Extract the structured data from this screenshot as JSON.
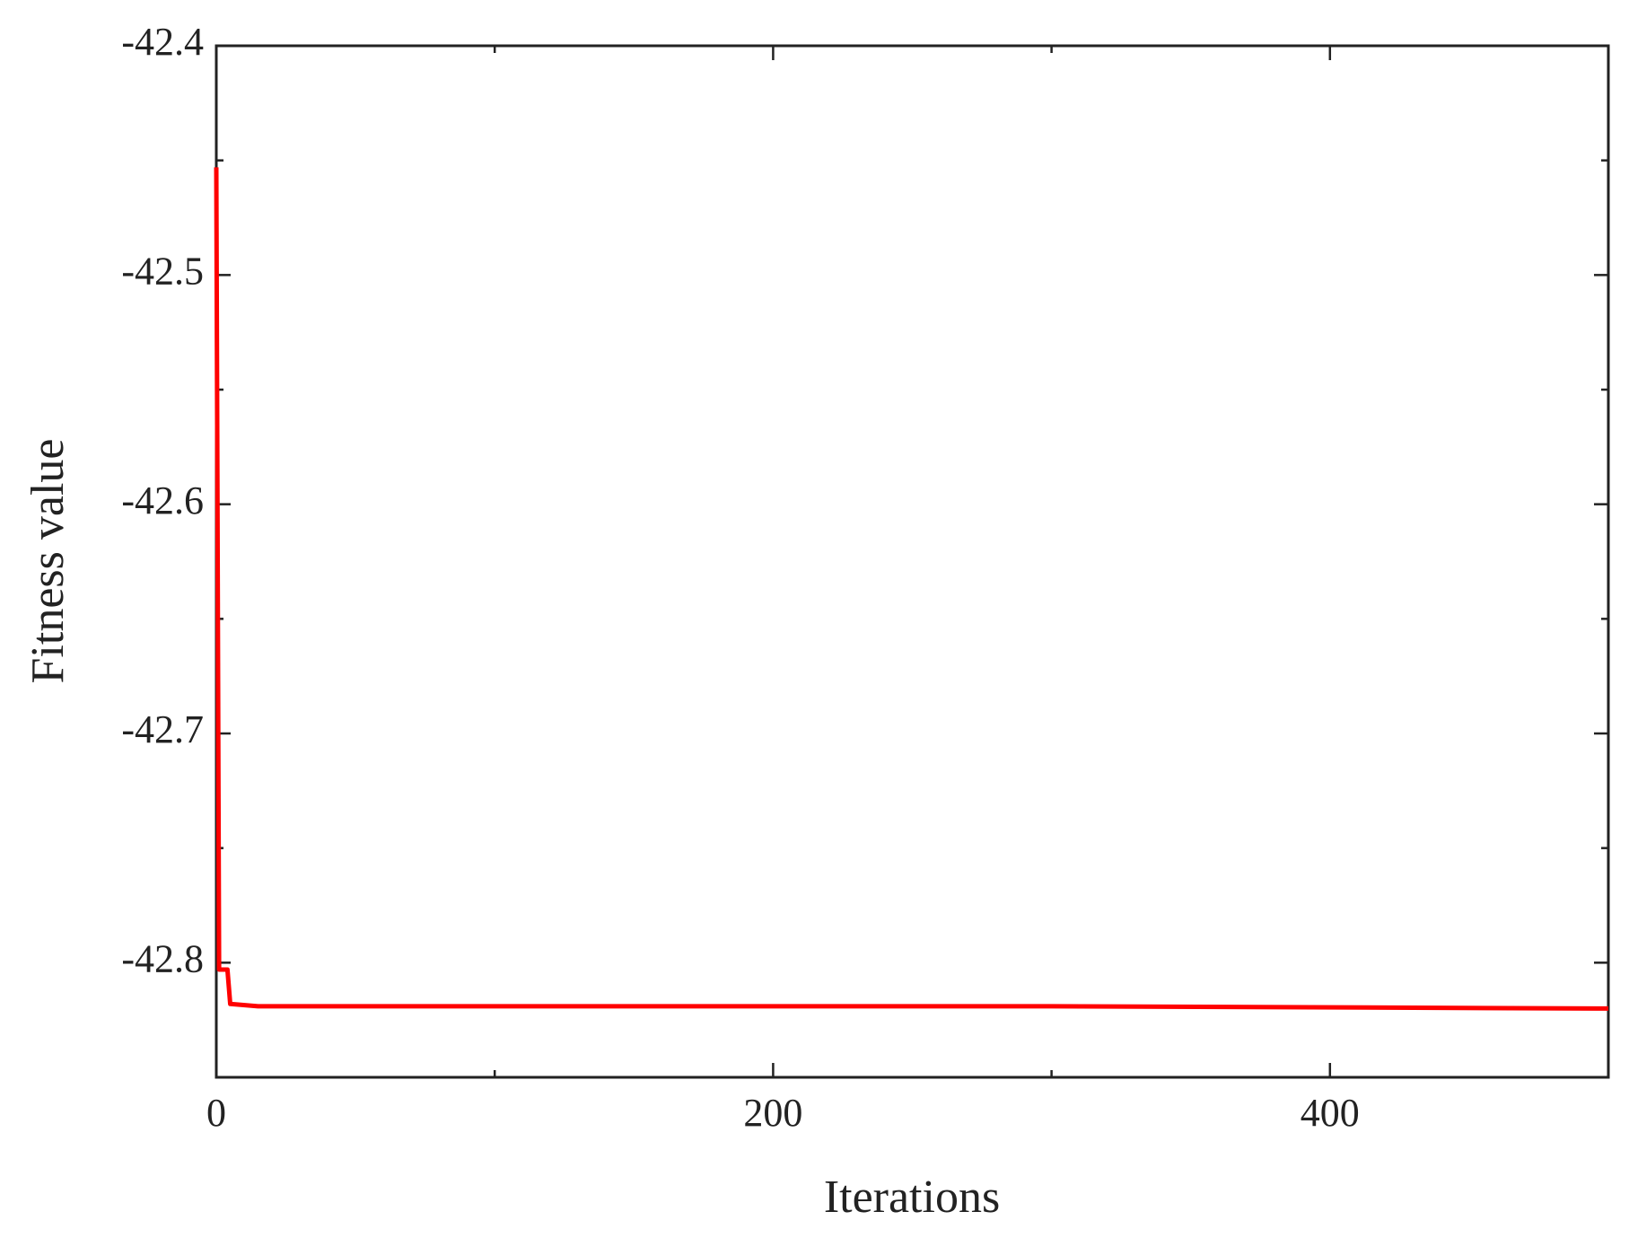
{
  "chart_data": {
    "type": "line",
    "xlabel": "Iterations",
    "ylabel": "Fitness value",
    "x": [
      0,
      1,
      2,
      4,
      5,
      15,
      100,
      300,
      500
    ],
    "series": [
      {
        "color": "#ff0000",
        "values": [
          -42.453,
          -42.803,
          -42.803,
          -42.803,
          -42.818,
          -42.819,
          -42.819,
          -42.819,
          -42.82
        ]
      }
    ],
    "xlim": [
      0,
      500
    ],
    "xticks": [
      0,
      200,
      400
    ],
    "xminorticks": [
      100,
      300
    ],
    "ylim": [
      -42.85,
      -42.4
    ],
    "yticks": [
      -42.4,
      -42.5,
      -42.6,
      -42.7,
      -42.8
    ],
    "yminorticks": [
      -42.45,
      -42.55,
      -42.65,
      -42.75,
      -42.85
    ],
    "grid": false
  }
}
